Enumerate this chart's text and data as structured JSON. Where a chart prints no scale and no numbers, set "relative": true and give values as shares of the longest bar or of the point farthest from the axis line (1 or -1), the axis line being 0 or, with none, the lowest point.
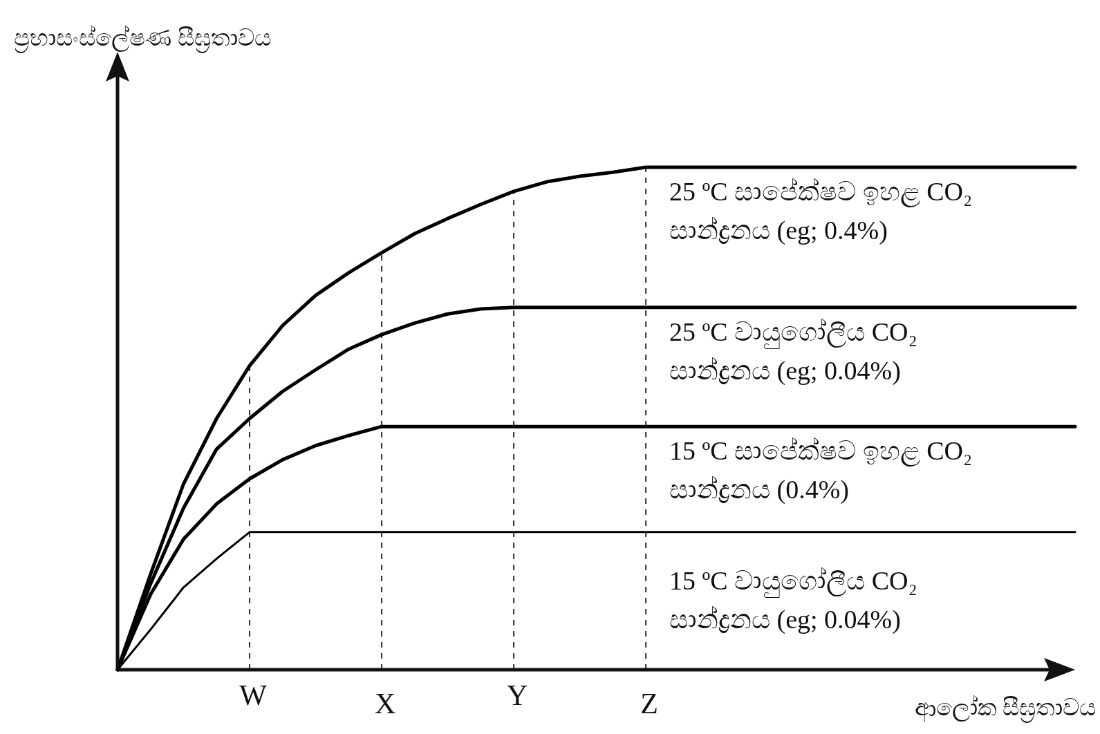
{
  "chart_data": {
    "type": "line",
    "relative": true,
    "ylabel": "ප්‍රභාසංස්ලේෂණ සීඝ්‍රතාවය",
    "xlabel": "ආලෝක සීඝ්‍රතාවය",
    "categories": [
      null,
      null,
      null,
      null,
      "W",
      null,
      null,
      null,
      "X",
      null,
      null,
      null,
      "Y",
      null,
      null,
      null,
      "Z",
      null,
      null,
      null,
      null,
      null,
      null,
      null,
      null,
      null,
      null,
      null,
      null,
      null
    ],
    "series": [
      {
        "name": "25 ºC සාපේක්ෂව ඉහළ CO₂ සාන්ද්‍රනය (eg; 0.4%)",
        "color": "#000000",
        "values": [
          0,
          0.19,
          0.37,
          0.5,
          0.605,
          0.685,
          0.745,
          0.79,
          0.83,
          0.868,
          0.898,
          0.926,
          0.952,
          0.971,
          0.982,
          0.99,
          1,
          1,
          1,
          1,
          1,
          1,
          1,
          1,
          1,
          1,
          1,
          1,
          1,
          1
        ]
      },
      {
        "name": "25 ºC වායුගෝලීය CO₂ සාන්ද්‍රනය  (eg; 0.04%)",
        "color": "#000000",
        "values": [
          0,
          0.171,
          0.322,
          0.439,
          0.5,
          0.554,
          0.597,
          0.638,
          0.667,
          0.69,
          0.708,
          0.718,
          0.721,
          0.721,
          0.721,
          0.721,
          0.721,
          0.721,
          0.721,
          0.721,
          0.721,
          0.721,
          0.721,
          0.721,
          0.721,
          0.721,
          0.721,
          0.721,
          0.721,
          0.721
        ]
      },
      {
        "name": "15 ºC සාපේක්ෂව ඉහළ CO₂ සාන්ද්‍රනය (0.4%)",
        "color": "#000000",
        "values": [
          0,
          0.15,
          0.26,
          0.33,
          0.38,
          0.418,
          0.446,
          0.466,
          0.484,
          0.484,
          0.484,
          0.484,
          0.484,
          0.484,
          0.484,
          0.484,
          0.484,
          0.484,
          0.484,
          0.484,
          0.484,
          0.484,
          0.484,
          0.484,
          0.484,
          0.484,
          0.484,
          0.484,
          0.484,
          0.484
        ]
      },
      {
        "name": "15 ºC වායුගෝලීය CO₂ සාන්ද්‍රනය  (eg; 0.04%)",
        "color": "#000000",
        "values": [
          0,
          0.08,
          0.164,
          0.221,
          0.274,
          0.274,
          0.274,
          0.274,
          0.274,
          0.274,
          0.274,
          0.274,
          0.274,
          0.274,
          0.274,
          0.274,
          0.274,
          0.274,
          0.274,
          0.274,
          0.274,
          0.274,
          0.274,
          0.274,
          0.274,
          0.274,
          0.274,
          0.274,
          0.274,
          0.274
        ]
      }
    ],
    "ref_lines": [
      {
        "axis": "x",
        "value": "W",
        "line_style": "dashed"
      },
      {
        "axis": "x",
        "value": "X",
        "line_style": "dashed"
      },
      {
        "axis": "x",
        "value": "Y",
        "line_style": "dashed"
      },
      {
        "axis": "x",
        "value": "Z",
        "line_style": "dashed"
      }
    ]
  }
}
